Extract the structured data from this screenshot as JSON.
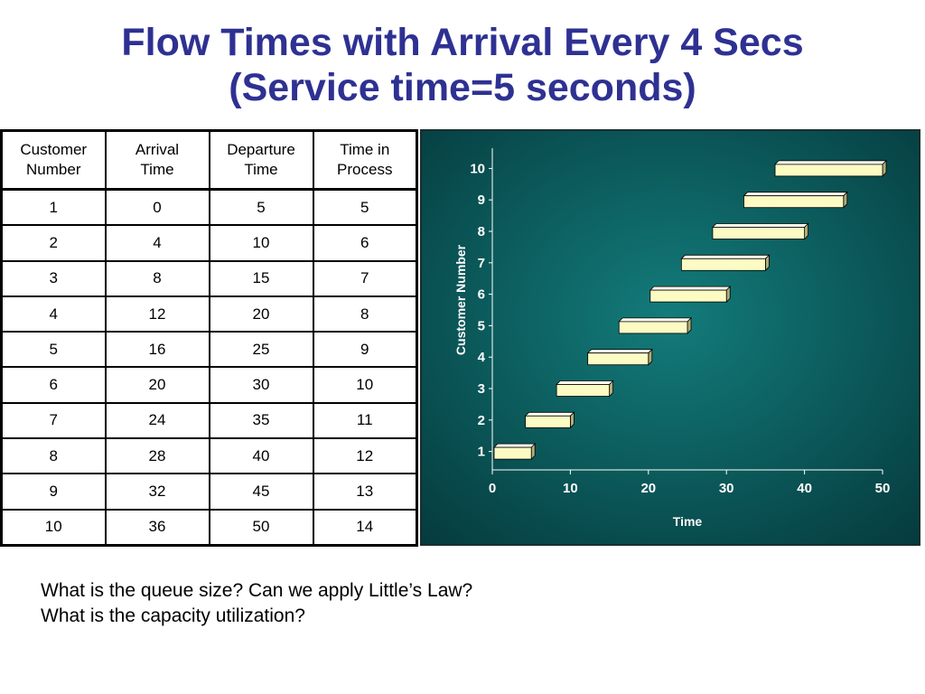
{
  "title": {
    "line1": "Flow Times with Arrival Every 4 Secs",
    "line2": "(Service time=5 seconds)"
  },
  "table": {
    "headers": [
      [
        "Customer",
        "Number"
      ],
      [
        "Arrival",
        "Time"
      ],
      [
        "Departure",
        "Time"
      ],
      [
        "Time in",
        "Process"
      ]
    ],
    "rows": [
      [
        "1",
        "0",
        "5",
        "5"
      ],
      [
        "2",
        "4",
        "10",
        "6"
      ],
      [
        "3",
        "8",
        "15",
        "7"
      ],
      [
        "4",
        "12",
        "20",
        "8"
      ],
      [
        "5",
        "16",
        "25",
        "9"
      ],
      [
        "6",
        "20",
        "30",
        "10"
      ],
      [
        "7",
        "24",
        "35",
        "11"
      ],
      [
        "8",
        "28",
        "40",
        "12"
      ],
      [
        "9",
        "32",
        "45",
        "13"
      ],
      [
        "10",
        "36",
        "50",
        "14"
      ]
    ]
  },
  "chart_data": {
    "type": "bar",
    "orientation": "horizontal-floating",
    "title": "",
    "xlabel": "Time",
    "ylabel": "Customer Number",
    "xlim": [
      0,
      50
    ],
    "x_ticks": [
      0,
      10,
      20,
      30,
      40,
      50
    ],
    "categories": [
      "1",
      "2",
      "3",
      "4",
      "5",
      "6",
      "7",
      "8",
      "9",
      "10"
    ],
    "series": [
      {
        "start": [
          0,
          4,
          8,
          12,
          16,
          20,
          24,
          28,
          32,
          36
        ],
        "end": [
          5,
          10,
          15,
          20,
          25,
          30,
          35,
          40,
          45,
          50
        ]
      }
    ],
    "grid": false,
    "legend": "none",
    "colors": {
      "bar_face": "#fdfbc4",
      "bar_top": "#fffff0",
      "bar_side": "#b0ae78",
      "bg_center": "#137c7b",
      "bg_edge": "#053a3d",
      "text": "#ffffff"
    }
  },
  "questions": {
    "line1": "What is the queue size? Can we apply Little’s Law?",
    "line2": "What is the capacity utilization?"
  }
}
